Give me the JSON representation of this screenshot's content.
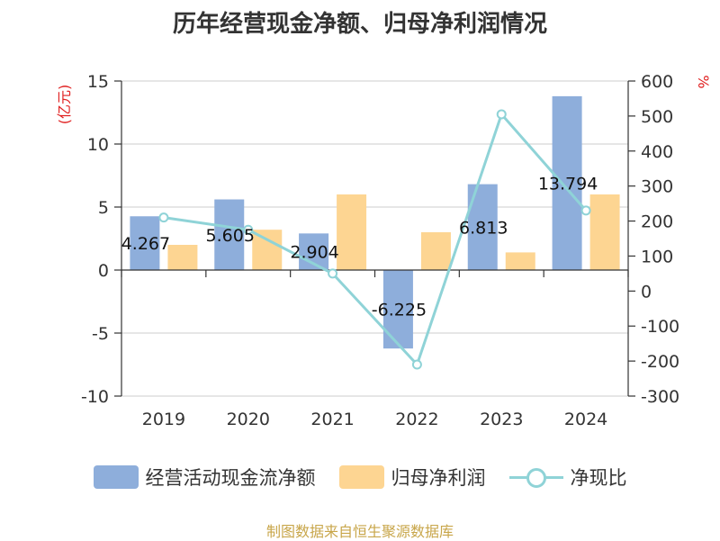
{
  "chart_data": {
    "type": "bar",
    "title": "历年经营现金净额、归母净利润情况",
    "categories": [
      "2019",
      "2020",
      "2021",
      "2022",
      "2023",
      "2024"
    ],
    "y_left": {
      "unit": "(亿元)",
      "range": [
        -10,
        15
      ],
      "ticks": [
        15,
        10,
        5,
        0,
        -5,
        -10
      ]
    },
    "y_right": {
      "unit": "%",
      "range": [
        -300,
        600
      ],
      "ticks": [
        600,
        500,
        400,
        300,
        200,
        100,
        0,
        -100,
        -200,
        -300
      ]
    },
    "series": [
      {
        "name": "经营活动现金流净额",
        "kind": "bar",
        "axis": "left",
        "color": "#8eaedb",
        "values": [
          4.267,
          5.605,
          2.904,
          -6.225,
          6.813,
          13.794
        ],
        "labels": [
          "4.267",
          "5.605",
          "2.904",
          "-6.225",
          "6.813",
          "13.794"
        ]
      },
      {
        "name": "归母净利润",
        "kind": "bar",
        "axis": "left",
        "color": "#fdd592",
        "values": [
          2.0,
          3.2,
          6.0,
          3.0,
          1.4,
          6.0
        ]
      },
      {
        "name": "净现比",
        "kind": "line",
        "axis": "right",
        "color": "#8fd3d7",
        "values": [
          210,
          175,
          50,
          -210,
          505,
          230
        ]
      }
    ],
    "grid": true,
    "legend_position": "bottom"
  },
  "source": "制图数据来自恒生聚源数据库"
}
